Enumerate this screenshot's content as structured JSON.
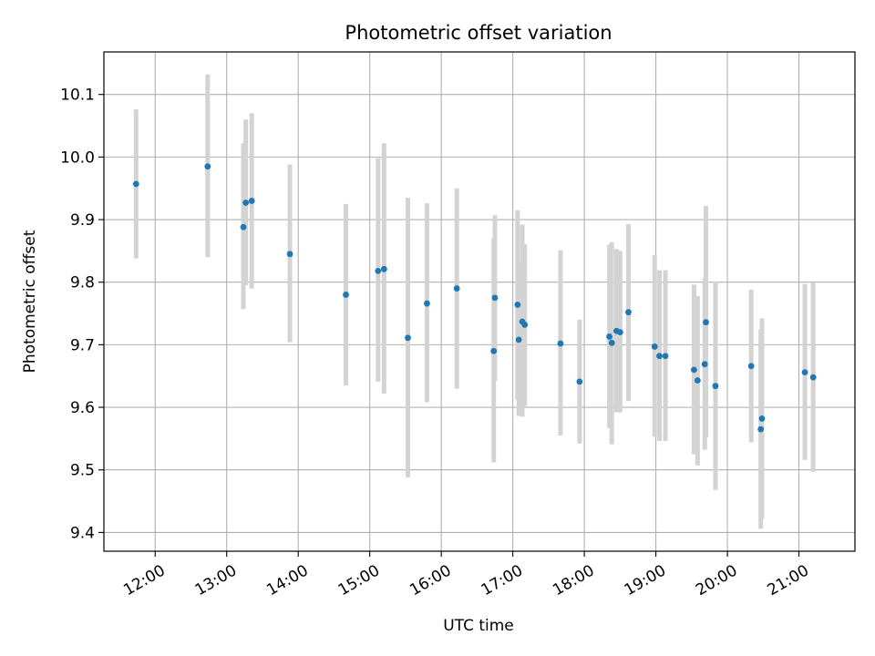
{
  "chart_data": {
    "type": "scatter",
    "title": "Photometric offset variation",
    "xlabel": "UTC time",
    "ylabel": "Photometric offset",
    "x_unit": "UTC time (HH:MM)",
    "xlim": [
      "11:17",
      "21:47"
    ],
    "ylim": [
      9.37,
      10.168
    ],
    "x_ticks": [
      "12:00",
      "13:00",
      "14:00",
      "15:00",
      "16:00",
      "17:00",
      "18:00",
      "19:00",
      "20:00",
      "21:00"
    ],
    "y_ticks": [
      "9.4",
      "9.5",
      "9.6",
      "9.7",
      "9.8",
      "9.9",
      "10.0",
      "10.1"
    ],
    "grid": true,
    "point_color": "#1f77b4",
    "errorbar_color": "#d3d3d3",
    "points": [
      {
        "x": "11:44",
        "y": 9.957,
        "lo": 9.838,
        "hi": 10.076
      },
      {
        "x": "12:44",
        "y": 9.985,
        "lo": 9.84,
        "hi": 10.132
      },
      {
        "x": "13:14",
        "y": 9.888,
        "lo": 9.757,
        "hi": 10.022
      },
      {
        "x": "13:16",
        "y": 9.927,
        "lo": 9.795,
        "hi": 10.06
      },
      {
        "x": "13:21",
        "y": 9.93,
        "lo": 9.79,
        "hi": 10.07
      },
      {
        "x": "13:53",
        "y": 9.845,
        "lo": 9.704,
        "hi": 9.988
      },
      {
        "x": "14:40",
        "y": 9.78,
        "lo": 9.635,
        "hi": 9.925
      },
      {
        "x": "15:07",
        "y": 9.818,
        "lo": 9.641,
        "hi": 9.998
      },
      {
        "x": "15:12",
        "y": 9.821,
        "lo": 9.622,
        "hi": 10.022
      },
      {
        "x": "15:32",
        "y": 9.711,
        "lo": 9.488,
        "hi": 9.935
      },
      {
        "x": "15:48",
        "y": 9.766,
        "lo": 9.608,
        "hi": 9.926
      },
      {
        "x": "16:13",
        "y": 9.79,
        "lo": 9.63,
        "hi": 9.95
      },
      {
        "x": "16:44",
        "y": 9.69,
        "lo": 9.512,
        "hi": 9.87
      },
      {
        "x": "16:45",
        "y": 9.775,
        "lo": 9.642,
        "hi": 9.907
      },
      {
        "x": "17:04",
        "y": 9.764,
        "lo": 9.612,
        "hi": 9.915
      },
      {
        "x": "17:05",
        "y": 9.708,
        "lo": 9.586,
        "hi": 9.83
      },
      {
        "x": "17:08",
        "y": 9.737,
        "lo": 9.585,
        "hi": 9.892
      },
      {
        "x": "17:10",
        "y": 9.732,
        "lo": 9.602,
        "hi": 9.861
      },
      {
        "x": "17:40",
        "y": 9.702,
        "lo": 9.555,
        "hi": 9.851
      },
      {
        "x": "17:56",
        "y": 9.641,
        "lo": 9.542,
        "hi": 9.74
      },
      {
        "x": "18:21",
        "y": 9.713,
        "lo": 9.567,
        "hi": 9.86
      },
      {
        "x": "18:23",
        "y": 9.703,
        "lo": 9.541,
        "hi": 9.864
      },
      {
        "x": "18:27",
        "y": 9.722,
        "lo": 9.592,
        "hi": 9.853
      },
      {
        "x": "18:30",
        "y": 9.72,
        "lo": 9.592,
        "hi": 9.85
      },
      {
        "x": "18:37",
        "y": 9.752,
        "lo": 9.61,
        "hi": 9.893
      },
      {
        "x": "18:59",
        "y": 9.697,
        "lo": 9.553,
        "hi": 9.843
      },
      {
        "x": "19:03",
        "y": 9.682,
        "lo": 9.546,
        "hi": 9.819
      },
      {
        "x": "19:08",
        "y": 9.682,
        "lo": 9.546,
        "hi": 9.819
      },
      {
        "x": "19:32",
        "y": 9.66,
        "lo": 9.525,
        "hi": 9.796
      },
      {
        "x": "19:35",
        "y": 9.643,
        "lo": 9.507,
        "hi": 9.778
      },
      {
        "x": "19:41",
        "y": 9.669,
        "lo": 9.532,
        "hi": 9.806
      },
      {
        "x": "19:42",
        "y": 9.736,
        "lo": 9.552,
        "hi": 9.922
      },
      {
        "x": "19:50",
        "y": 9.634,
        "lo": 9.468,
        "hi": 9.801
      },
      {
        "x": "20:20",
        "y": 9.666,
        "lo": 9.544,
        "hi": 9.788
      },
      {
        "x": "20:28",
        "y": 9.565,
        "lo": 9.406,
        "hi": 9.725
      },
      {
        "x": "20:29",
        "y": 9.582,
        "lo": 9.422,
        "hi": 9.742
      },
      {
        "x": "21:05",
        "y": 9.656,
        "lo": 9.516,
        "hi": 9.797
      },
      {
        "x": "21:12",
        "y": 9.648,
        "lo": 9.497,
        "hi": 9.799
      }
    ]
  }
}
